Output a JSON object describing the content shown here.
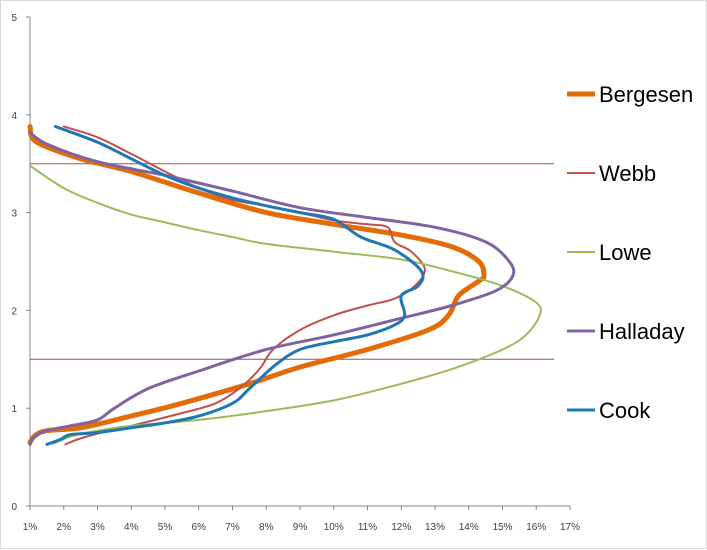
{
  "chart_data": {
    "type": "line",
    "title": "",
    "xlabel": "",
    "ylabel": "",
    "x_ticks": [
      "1%",
      "2%",
      "3%",
      "4%",
      "5%",
      "6%",
      "7%",
      "8%",
      "9%",
      "10%",
      "11%",
      "12%",
      "13%",
      "14%",
      "15%",
      "16%",
      "17%"
    ],
    "y_ticks": [
      "0",
      "1",
      "2",
      "3",
      "4",
      "5"
    ],
    "xlim": [
      1,
      17
    ],
    "ylim": [
      0,
      5
    ],
    "grid": false,
    "legend_position": "right",
    "reference_lines": [
      {
        "y": 3.5,
        "color": "#a0524b"
      },
      {
        "y": 1.5,
        "color": "#a0524b"
      }
    ],
    "series": [
      {
        "name": "Bergesen",
        "color": "#e36c09",
        "width": 5,
        "points": [
          [
            1,
            3.88
          ],
          [
            1.2,
            3.72
          ],
          [
            2.5,
            3.55
          ],
          [
            4,
            3.42
          ],
          [
            6,
            3.2
          ],
          [
            8,
            3.0
          ],
          [
            10,
            2.88
          ],
          [
            12,
            2.77
          ],
          [
            13.5,
            2.65
          ],
          [
            14.3,
            2.5
          ],
          [
            14.45,
            2.35
          ],
          [
            14.3,
            2.3
          ],
          [
            13.7,
            2.15
          ],
          [
            13.4,
            1.95
          ],
          [
            12.8,
            1.8
          ],
          [
            11,
            1.6
          ],
          [
            9,
            1.42
          ],
          [
            7.5,
            1.25
          ],
          [
            5.5,
            1.05
          ],
          [
            4,
            0.92
          ],
          [
            2.5,
            0.8
          ],
          [
            1.5,
            0.77
          ],
          [
            1.15,
            0.72
          ],
          [
            1,
            0.65
          ]
        ]
      },
      {
        "name": "Webb",
        "color": "#c0504d",
        "width": 2,
        "points": [
          [
            2,
            3.88
          ],
          [
            3,
            3.77
          ],
          [
            4,
            3.6
          ],
          [
            5,
            3.42
          ],
          [
            6,
            3.25
          ],
          [
            7,
            3.13
          ],
          [
            8,
            3.07
          ],
          [
            9,
            3.0
          ],
          [
            10,
            2.92
          ],
          [
            11,
            2.88
          ],
          [
            11.6,
            2.85
          ],
          [
            11.8,
            2.7
          ],
          [
            12.3,
            2.6
          ],
          [
            12.7,
            2.42
          ],
          [
            12.4,
            2.25
          ],
          [
            11.8,
            2.12
          ],
          [
            11,
            2.05
          ],
          [
            10,
            1.95
          ],
          [
            9,
            1.8
          ],
          [
            8.2,
            1.6
          ],
          [
            7.8,
            1.4
          ],
          [
            7.2,
            1.2
          ],
          [
            6.5,
            1.05
          ],
          [
            5.5,
            0.95
          ],
          [
            4,
            0.82
          ],
          [
            3,
            0.74
          ],
          [
            2.4,
            0.68
          ],
          [
            2.05,
            0.63
          ]
        ]
      },
      {
        "name": "Lowe",
        "color": "#9bbb59",
        "width": 2,
        "points": [
          [
            1,
            3.48
          ],
          [
            2,
            3.25
          ],
          [
            3,
            3.1
          ],
          [
            4,
            2.98
          ],
          [
            5,
            2.9
          ],
          [
            6,
            2.82
          ],
          [
            7,
            2.75
          ],
          [
            8,
            2.68
          ],
          [
            10,
            2.6
          ],
          [
            12,
            2.52
          ],
          [
            13.5,
            2.4
          ],
          [
            15,
            2.25
          ],
          [
            16,
            2.08
          ],
          [
            16.1,
            1.95
          ],
          [
            15.7,
            1.75
          ],
          [
            15,
            1.6
          ],
          [
            13.5,
            1.4
          ],
          [
            12,
            1.25
          ],
          [
            10,
            1.08
          ],
          [
            8,
            0.97
          ],
          [
            6,
            0.88
          ],
          [
            4,
            0.82
          ],
          [
            3,
            0.77
          ],
          [
            2.3,
            0.72
          ],
          [
            1.7,
            0.64
          ]
        ]
      },
      {
        "name": "Halladay",
        "color": "#8064a2",
        "width": 3,
        "points": [
          [
            1,
            3.82
          ],
          [
            1.5,
            3.7
          ],
          [
            3,
            3.52
          ],
          [
            5,
            3.38
          ],
          [
            7,
            3.22
          ],
          [
            9,
            3.05
          ],
          [
            11,
            2.95
          ],
          [
            13,
            2.85
          ],
          [
            14.5,
            2.7
          ],
          [
            15.2,
            2.5
          ],
          [
            15.3,
            2.35
          ],
          [
            14.8,
            2.2
          ],
          [
            13.5,
            2.05
          ],
          [
            12,
            1.92
          ],
          [
            10,
            1.75
          ],
          [
            8,
            1.6
          ],
          [
            6,
            1.38
          ],
          [
            4.5,
            1.2
          ],
          [
            3.5,
            1.0
          ],
          [
            3,
            0.88
          ],
          [
            2.2,
            0.82
          ],
          [
            1.5,
            0.77
          ],
          [
            1.1,
            0.7
          ],
          [
            1,
            0.63
          ]
        ]
      },
      {
        "name": "Cook",
        "color": "#1f77b4",
        "width": 3,
        "points": [
          [
            1.75,
            3.88
          ],
          [
            3,
            3.72
          ],
          [
            4,
            3.55
          ],
          [
            5,
            3.38
          ],
          [
            6,
            3.25
          ],
          [
            7,
            3.15
          ],
          [
            8,
            3.07
          ],
          [
            9,
            3.0
          ],
          [
            10,
            2.93
          ],
          [
            10.8,
            2.75
          ],
          [
            11.8,
            2.62
          ],
          [
            12.6,
            2.4
          ],
          [
            12.5,
            2.25
          ],
          [
            12,
            2.15
          ],
          [
            12.1,
            1.95
          ],
          [
            11.8,
            1.85
          ],
          [
            11,
            1.75
          ],
          [
            10,
            1.68
          ],
          [
            9,
            1.6
          ],
          [
            8.3,
            1.45
          ],
          [
            7.5,
            1.2
          ],
          [
            7,
            1.05
          ],
          [
            6,
            0.92
          ],
          [
            5,
            0.85
          ],
          [
            4,
            0.8
          ],
          [
            3,
            0.75
          ],
          [
            2.2,
            0.73
          ],
          [
            1.9,
            0.68
          ],
          [
            1.5,
            0.63
          ]
        ]
      }
    ]
  }
}
